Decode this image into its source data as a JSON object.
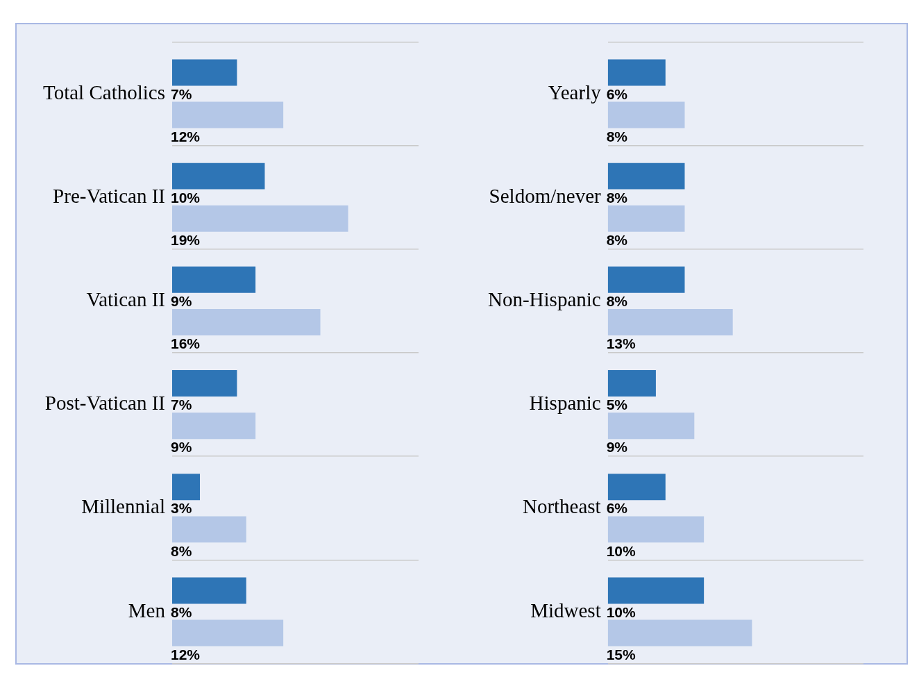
{
  "chart_data": [
    {
      "type": "bar",
      "orientation": "horizontal",
      "categories": [
        "Total Catholics",
        "Pre-Vatican II",
        "Vatican II",
        "Post-Vatican II",
        "Millennial",
        "Men"
      ],
      "series": [
        {
          "color": "#2e75b6",
          "values": [
            7,
            10,
            9,
            7,
            3,
            8
          ],
          "value_labels": [
            "7%",
            "10%",
            "9%",
            "7%",
            "3%",
            "8%"
          ]
        },
        {
          "color": "#b4c7e7",
          "values": [
            12,
            19,
            16,
            9,
            8,
            12
          ],
          "value_labels": [
            "12%",
            "19%",
            "16%",
            "9%",
            "8%",
            "12%"
          ]
        }
      ],
      "grid": "y",
      "legend": false,
      "tick_labels": "y"
    },
    {
      "type": "bar",
      "orientation": "horizontal",
      "categories": [
        "Yearly",
        "Seldom/never",
        "Non-Hispanic",
        "Hispanic",
        "Northeast",
        "Midwest"
      ],
      "series": [
        {
          "color": "#2e75b6",
          "values": [
            6,
            8,
            8,
            5,
            6,
            10
          ],
          "value_labels": [
            "6%",
            "8%",
            "8%",
            "5%",
            "6%",
            "10%"
          ]
        },
        {
          "color": "#b4c7e7",
          "values": [
            8,
            8,
            13,
            9,
            10,
            15
          ],
          "value_labels": [
            "8%",
            "8%",
            "13%",
            "9%",
            "10%",
            "15%"
          ]
        }
      ],
      "grid": "y",
      "legend": false,
      "tick_labels": "y"
    }
  ]
}
